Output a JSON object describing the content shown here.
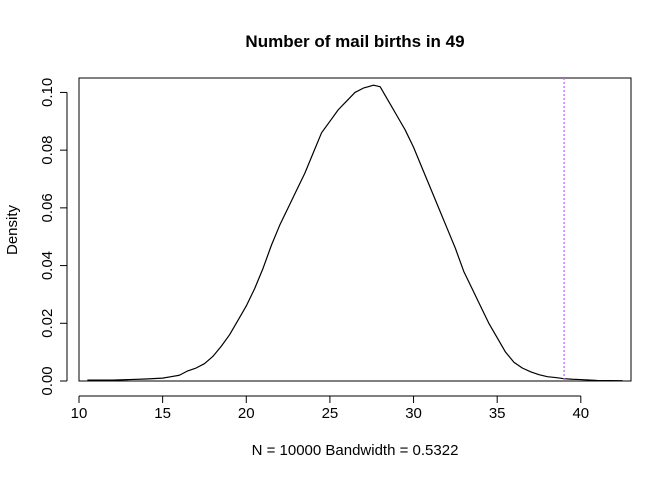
{
  "chart_data": {
    "type": "line",
    "title": "Number of mail births in 49",
    "xlabel": "N = 10000   Bandwidth = 0.5322",
    "ylabel": "Density",
    "xlim": [
      10,
      43
    ],
    "ylim": [
      0,
      0.105
    ],
    "x_ticks": [
      "10",
      "15",
      "20",
      "25",
      "30",
      "35",
      "40"
    ],
    "y_ticks": [
      "0.00",
      "0.02",
      "0.04",
      "0.06",
      "0.08",
      "0.10"
    ],
    "grid": false,
    "legend": "none",
    "series": [
      {
        "x": [
          10.5,
          12,
          13,
          14,
          15,
          15.5,
          16,
          16.5,
          17,
          17.5,
          18,
          18.5,
          19,
          19.5,
          20,
          20.5,
          21,
          21.5,
          22,
          22.5,
          23,
          23.5,
          24,
          24.5,
          25,
          25.5,
          26,
          26.5,
          27,
          27.3,
          27.6,
          28,
          28.3,
          28.6,
          29,
          29.5,
          30,
          30.5,
          31,
          31.5,
          32,
          32.5,
          33,
          33.5,
          34,
          34.5,
          35,
          35.5,
          36,
          36.5,
          37,
          37.5,
          38,
          38.5,
          39,
          39.5,
          40,
          41,
          42.5
        ],
        "y": [
          0.0003,
          0.0003,
          0.0005,
          0.0007,
          0.001,
          0.0015,
          0.002,
          0.0035,
          0.0045,
          0.006,
          0.0085,
          0.012,
          0.016,
          0.021,
          0.026,
          0.032,
          0.039,
          0.047,
          0.054,
          0.06,
          0.066,
          0.072,
          0.079,
          0.086,
          0.09,
          0.094,
          0.097,
          0.1,
          0.1015,
          0.102,
          0.1025,
          0.102,
          0.099,
          0.096,
          0.092,
          0.087,
          0.081,
          0.074,
          0.067,
          0.06,
          0.053,
          0.046,
          0.038,
          0.032,
          0.026,
          0.02,
          0.015,
          0.01,
          0.0065,
          0.0045,
          0.0032,
          0.0022,
          0.0015,
          0.0012,
          0.0008,
          0.0006,
          0.0005,
          0.0002,
          0.0001
        ],
        "color": "#000000"
      }
    ],
    "vline": {
      "x": 39,
      "color": "#cc66ff",
      "style": "dotted"
    }
  }
}
